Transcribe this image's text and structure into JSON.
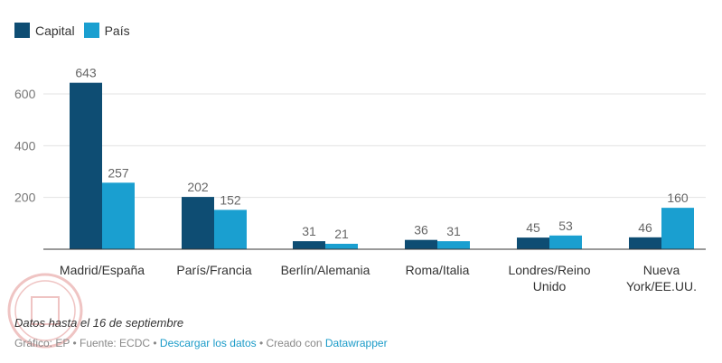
{
  "legend": {
    "items": [
      {
        "label": "Capital",
        "color": "#0e4d73"
      },
      {
        "label": "País",
        "color": "#1a9fd0"
      }
    ]
  },
  "chart_data": {
    "type": "bar",
    "categories": [
      "Madrid/España",
      "París/Francia",
      "Berlín/Alemania",
      "Roma/Italia",
      "Londres/Reino Unido",
      "Nueva York/EE.UU."
    ],
    "category_lines": [
      [
        "Madrid/España"
      ],
      [
        "París/Francia"
      ],
      [
        "Berlín/Alemania"
      ],
      [
        "Roma/Italia"
      ],
      [
        "Londres/Reino",
        "Unido"
      ],
      [
        "Nueva",
        "York/EE.UU."
      ]
    ],
    "series": [
      {
        "name": "Capital",
        "values": [
          643,
          202,
          31,
          36,
          45,
          46
        ],
        "color": "#0e4d73"
      },
      {
        "name": "País",
        "values": [
          257,
          152,
          21,
          31,
          53,
          160
        ],
        "color": "#1a9fd0"
      }
    ],
    "ylim": [
      0,
      700
    ],
    "yticks": [
      200,
      400,
      600
    ],
    "grid": true,
    "legend_position": "top-left"
  },
  "footer": {
    "note": "Datos hasta el 16 de septiembre",
    "source_prefix": "Gráfico: EP • Fuente: ECDC • ",
    "download_label": "Descargar los datos",
    "created_with": " • Creado con ",
    "tool_label": "Datawrapper"
  }
}
